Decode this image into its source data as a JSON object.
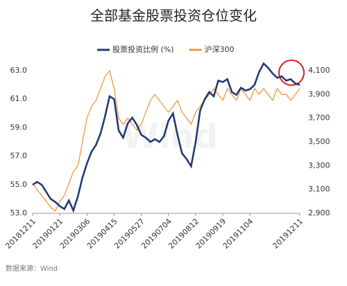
{
  "chart_data": {
    "type": "line",
    "title": "全部基金股票投资仓位变化",
    "source": "数据来源：Wind",
    "watermark": "Wind",
    "categories": [
      "20181211",
      null,
      null,
      null,
      null,
      null,
      "20190121",
      null,
      null,
      null,
      null,
      null,
      "20190306",
      null,
      null,
      null,
      null,
      null,
      "20190415",
      null,
      null,
      null,
      null,
      null,
      "20190527",
      null,
      null,
      null,
      null,
      null,
      "20190704",
      null,
      null,
      null,
      null,
      null,
      "20190812",
      null,
      null,
      null,
      null,
      null,
      "20190919",
      null,
      null,
      null,
      null,
      null,
      "20191104",
      null,
      null,
      null,
      null,
      null,
      null,
      null,
      null,
      null,
      null,
      "20191211"
    ],
    "series": [
      {
        "name": "股票投资比例 (%)",
        "color": "#243a73",
        "axis": "y",
        "values": [
          55.0,
          55.2,
          55.0,
          54.5,
          54.0,
          53.8,
          53.5,
          53.3,
          53.9,
          53.2,
          54.2,
          55.5,
          56.5,
          57.3,
          57.8,
          58.6,
          59.8,
          61.2,
          61.0,
          58.8,
          58.3,
          59.3,
          59.7,
          59.2,
          58.5,
          58.3,
          58.0,
          58.2,
          58.0,
          58.4,
          59.5,
          60.0,
          58.5,
          57.2,
          56.8,
          56.3,
          58.0,
          60.2,
          61.0,
          61.5,
          61.2,
          62.3,
          62.2,
          62.4,
          61.5,
          61.3,
          61.8,
          61.6,
          61.7,
          62.0,
          62.9,
          63.5,
          63.2,
          62.8,
          62.5,
          62.6,
          62.3,
          62.4,
          62.1,
          62.0
        ]
      },
      {
        "name": "沪深300",
        "color": "#f0993e",
        "axis": "y2",
        "values": [
          3150,
          3100,
          3050,
          3000,
          2950,
          2920,
          3000,
          3050,
          3150,
          3250,
          3300,
          3500,
          3700,
          3800,
          3850,
          3950,
          4050,
          4100,
          3950,
          3700,
          3650,
          3700,
          3650,
          3600,
          3650,
          3750,
          3850,
          3900,
          3850,
          3800,
          3750,
          3800,
          3850,
          3750,
          3700,
          3650,
          3750,
          3800,
          3850,
          3900,
          3950,
          3900,
          3850,
          3950,
          3900,
          3850,
          3950,
          3900,
          3850,
          3950,
          3900,
          3950,
          3900,
          3850,
          3950,
          3900,
          3900,
          3850,
          3900,
          3950
        ]
      }
    ],
    "ylim": [
      53,
      63
    ],
    "yticks": [
      {
        "value": 53,
        "label": "53.0"
      },
      {
        "value": 55,
        "label": "55.0"
      },
      {
        "value": 57,
        "label": "57.0"
      },
      {
        "value": 59,
        "label": "59.0"
      },
      {
        "value": 61,
        "label": "61.0"
      },
      {
        "value": 63,
        "label": "63.0"
      }
    ],
    "y2lim": [
      2900,
      4100
    ],
    "y2ticks": [
      {
        "value": 2900,
        "label": "2,900"
      },
      {
        "value": 3100,
        "label": "3,100"
      },
      {
        "value": 3300,
        "label": "3,300"
      },
      {
        "value": 3500,
        "label": "3,500"
      },
      {
        "value": 3700,
        "label": "3,700"
      },
      {
        "value": 3900,
        "label": "3,900"
      },
      {
        "value": 4100,
        "label": "4,100"
      }
    ],
    "grid": false
  }
}
